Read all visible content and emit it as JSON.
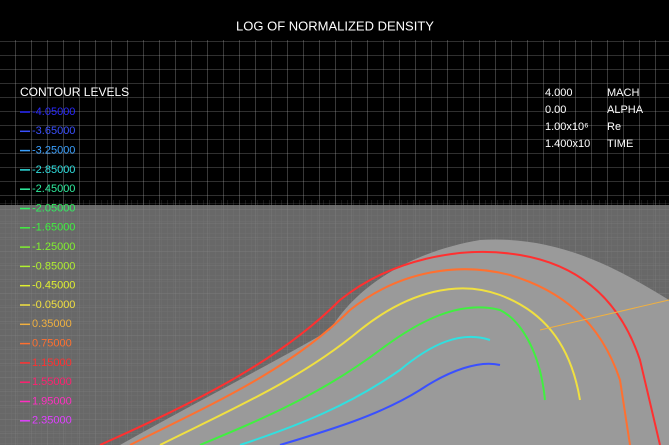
{
  "header": {
    "title": "LOG OF NORMALIZED DENSITY"
  },
  "legend": {
    "title": "CONTOUR LEVELS",
    "levels": [
      {
        "value": "-4.05000",
        "color": "#2a2aff"
      },
      {
        "value": "-3.65000",
        "color": "#3a50ff"
      },
      {
        "value": "-3.25000",
        "color": "#3aa0ff"
      },
      {
        "value": "-2.85000",
        "color": "#30e0e0"
      },
      {
        "value": "-2.45000",
        "color": "#30f0a0"
      },
      {
        "value": "-2.05000",
        "color": "#30f060"
      },
      {
        "value": "-1.65000",
        "color": "#40f040"
      },
      {
        "value": "-1.25000",
        "color": "#80f030"
      },
      {
        "value": "-0.85000",
        "color": "#b0f030"
      },
      {
        "value": "-0.45000",
        "color": "#e0f030"
      },
      {
        "value": "-0.05000",
        "color": "#f0e040"
      },
      {
        "value": "0.35000",
        "color": "#f0b040"
      },
      {
        "value": "0.75000",
        "color": "#ff7030"
      },
      {
        "value": "1.15000",
        "color": "#ff3030"
      },
      {
        "value": "1.55000",
        "color": "#ff2070"
      },
      {
        "value": "1.95000",
        "color": "#ff30c0"
      },
      {
        "value": "2.35000",
        "color": "#e040ff"
      }
    ]
  },
  "parameters": [
    {
      "value": "4.000",
      "label": "MACH"
    },
    {
      "value": "0.00",
      "label": "ALPHA"
    },
    {
      "value": "1.00x10⁶",
      "label": "Re"
    },
    {
      "value": "1.400x10",
      "label": "TIME"
    }
  ]
}
